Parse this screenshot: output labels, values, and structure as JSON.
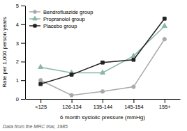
{
  "chart_data": {
    "type": "line",
    "xlabel": "6 month systolic pressure (mmHg)",
    "ylabel": "Rate per 1,000 person years",
    "annotations": [
      "Data from the MRC trial, 1985"
    ],
    "categories": [
      "<125",
      "126-134",
      "135-144",
      "145-154",
      "155+"
    ],
    "series": [
      {
        "name": "Bendrofluazide group",
        "color": "#aaaaaa",
        "marker": "circle",
        "values": [
          1.0,
          0.2,
          0.4,
          0.65,
          3.2
        ]
      },
      {
        "name": "Propranolol group",
        "color": "#8ab8a8",
        "marker": "triangle",
        "values": [
          1.7,
          1.4,
          1.4,
          2.3,
          3.9
        ]
      },
      {
        "name": "Placebo group",
        "color": "#222222",
        "marker": "square",
        "values": [
          0.8,
          1.3,
          1.95,
          2.1,
          4.3
        ]
      }
    ],
    "ylim": [
      0,
      5
    ],
    "yticks": [
      0,
      1,
      2,
      3,
      4,
      5
    ],
    "grid": false,
    "legend": "upper left"
  }
}
